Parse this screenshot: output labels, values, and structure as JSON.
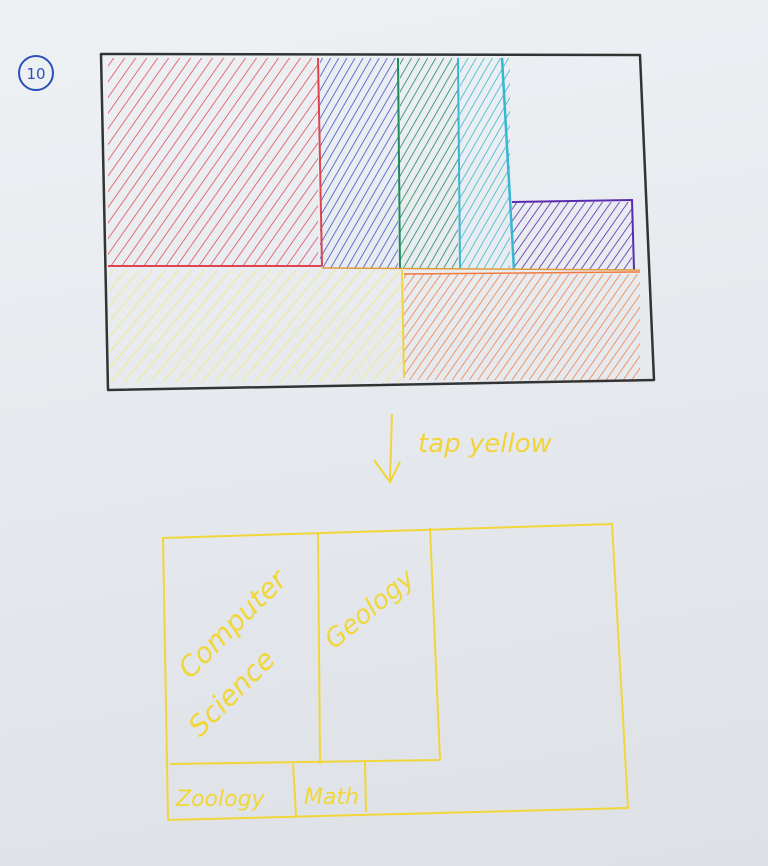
{
  "page_number": "10",
  "annotation": {
    "action_text": "tap yellow",
    "color": "#f2d33b"
  },
  "top_treemap": {
    "border_color": "#333333",
    "tiles": [
      {
        "color": "#e0444e"
      },
      {
        "color": "#3d55c7"
      },
      {
        "color": "#1f8a5a"
      },
      {
        "color": "#39b7d2"
      },
      {
        "color": "#5a2bb0"
      },
      {
        "color": "#f5e86b"
      },
      {
        "color": "#f07a3c"
      }
    ]
  },
  "bottom_treemap": {
    "color": "#f1d63a",
    "labels": {
      "computer_science": [
        "Computer",
        "Science"
      ],
      "geology": "Geology",
      "zoology": "Zoology",
      "math": "Math"
    }
  },
  "marker_color": "#2c4fb8"
}
